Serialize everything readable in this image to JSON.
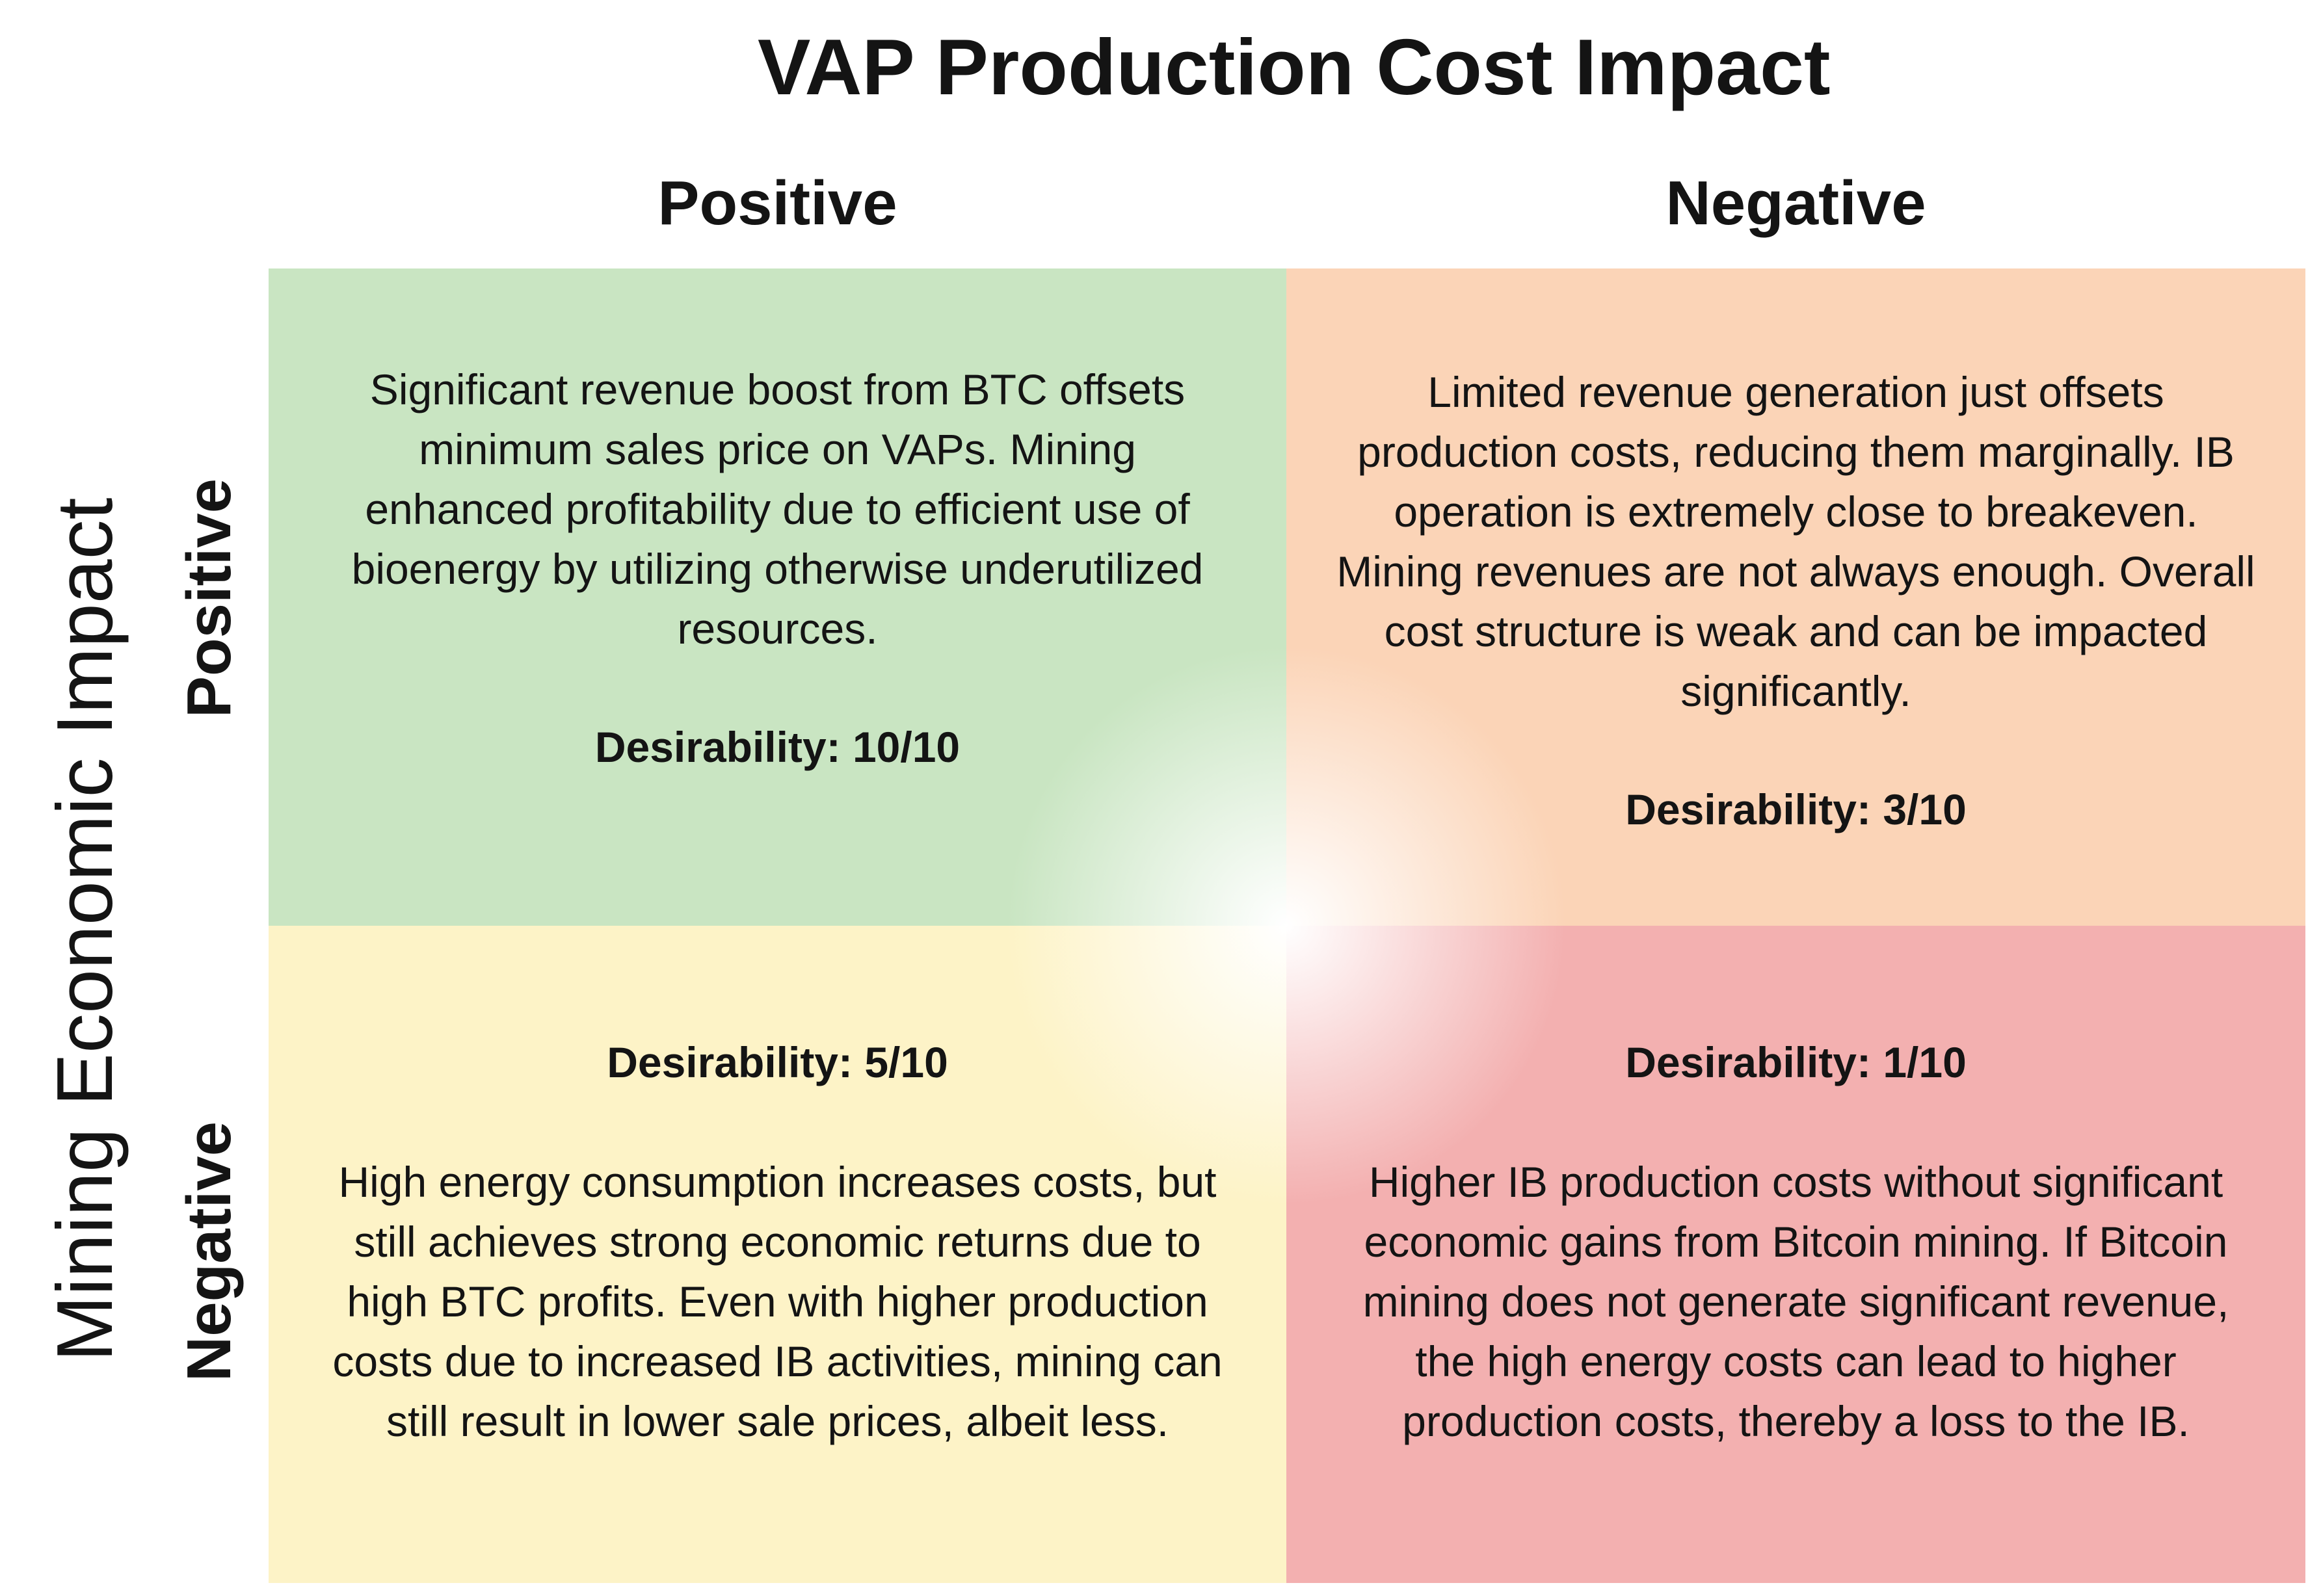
{
  "title": "VAP Production Cost Impact",
  "y_axis_title": "Mining Economic Impact",
  "columns": {
    "positive": "Positive",
    "negative": "Negative"
  },
  "rows": {
    "positive": "Positive",
    "negative": "Negative"
  },
  "colors": {
    "top_left": "#c9e5c2",
    "top_right": "#fbd4b7",
    "bottom_left": "#fdf3c7",
    "bottom_right": "#f3b0b0",
    "center": "#ffffff"
  },
  "quadrants": {
    "top_left": {
      "text": "Significant revenue boost from BTC offsets minimum sales price on VAPs. Mining enhanced profitability due to efficient use of bioenergy by utilizing otherwise underutilized resources.",
      "desirability": "Desirability: 10/10"
    },
    "top_right": {
      "text": "Limited revenue generation just offsets production costs, reducing them marginally. IB operation is extremely close to breakeven.  Mining revenues are not always enough. Overall cost structure is weak and can be impacted significantly.",
      "desirability": "Desirability: 3/10"
    },
    "bottom_left": {
      "text": "High energy consumption increases costs, but still achieves strong economic returns due to high BTC profits. Even with higher production costs due to increased IB activities, mining can still result in lower sale prices, albeit less.",
      "desirability": "Desirability: 5/10"
    },
    "bottom_right": {
      "text": "Higher IB production costs without significant economic gains from Bitcoin mining. If Bitcoin mining does not generate significant revenue, the high energy costs can lead to higher production costs, thereby a loss to the IB.",
      "desirability": "Desirability: 1/10"
    }
  }
}
